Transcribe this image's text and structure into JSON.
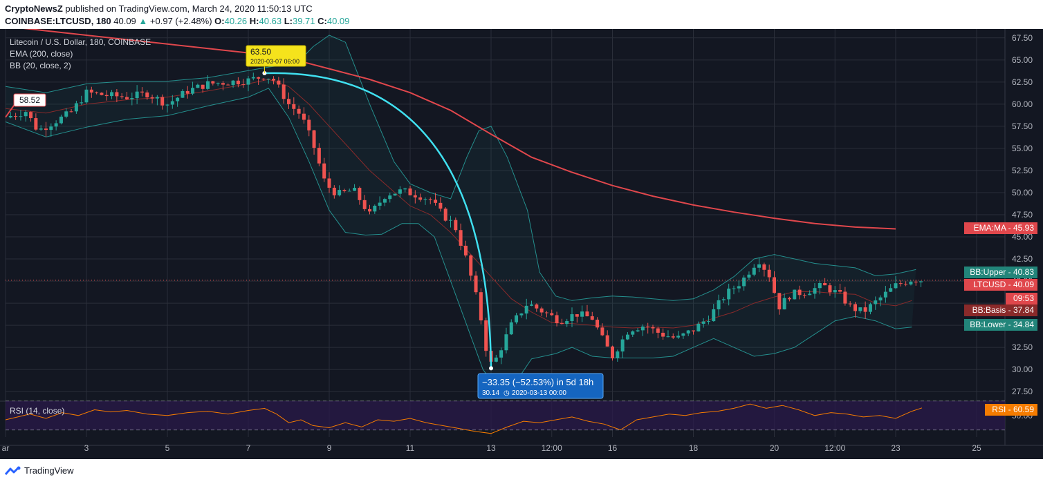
{
  "header": {
    "publisher": "CryptoNewsZ",
    "published_text": "published on TradingView.com, March 24, 2020 11:50:13 UTC",
    "symbol": "COINBASE:LTCUSD, 180",
    "last": "40.09",
    "change": "+0.97 (+2.48%)",
    "o_label": "O:",
    "o_value": "40.26",
    "h_label": "H:",
    "h_value": "40.63",
    "l_label": "L:",
    "l_value": "39.71",
    "c_label": "C:",
    "c_value": "40.09"
  },
  "legend": {
    "title": "Litecoin / U.S. Dollar, 180, COINBASE",
    "ema": "EMA (200, close)",
    "bb": "BB (20, close, 2)",
    "rsi": "RSI (14, close)"
  },
  "annotations": {
    "start_price": "58.52",
    "peak_price": "63.50",
    "peak_date": "2020-03-07 06:00",
    "drop_text": "−33.35 (−52.53%) in 5d 18h",
    "drop_price": "30.14",
    "drop_date": "2020-03-13  00:00"
  },
  "price_labels": [
    {
      "name": "EMA:MA",
      "value": "45.93",
      "color": "#e0474c"
    },
    {
      "name": "BB:Upper",
      "value": "40.83",
      "color": "#22857a"
    },
    {
      "name": "LTCUSD",
      "value": "40.09",
      "color": "#e0474c"
    },
    {
      "name": "",
      "value": "09:53",
      "color": "#e0474c"
    },
    {
      "name": "BB:Basis",
      "value": "37.84",
      "color": "#8a2a2a"
    },
    {
      "name": "BB:Lower",
      "value": "34.84",
      "color": "#22857a"
    }
  ],
  "rsi_label": {
    "name": "RSI",
    "value": "60.59",
    "color": "#f57c00"
  },
  "footer": {
    "brand": "TradingView"
  },
  "colors": {
    "up": "#26a69a",
    "down": "#ef5350",
    "ema": "#e0474c",
    "bb": "#2bb5b0",
    "basis": "#8a2a2a",
    "arc": "#40e0f0",
    "rsi": "#f57c00"
  },
  "chart_data": {
    "type": "candlestick",
    "title": "Litecoin / U.S. Dollar, 180, COINBASE",
    "y_ticks": [
      "67.50",
      "65.00",
      "62.50",
      "60.00",
      "57.50",
      "55.00",
      "52.50",
      "50.00",
      "47.50",
      "45.00",
      "42.50",
      "40.00",
      "37.50",
      "35.00",
      "32.50",
      "30.00",
      "27.50"
    ],
    "ylim": [
      26.5,
      68.5
    ],
    "rsi_ticks": [
      "50.00"
    ],
    "x_ticks": [
      {
        "label": "ar",
        "t": 0
      },
      {
        "label": "3",
        "t": 2
      },
      {
        "label": "5",
        "t": 4
      },
      {
        "label": "7",
        "t": 6
      },
      {
        "label": "9",
        "t": 8
      },
      {
        "label": "11",
        "t": 10
      },
      {
        "label": "13",
        "t": 12
      },
      {
        "label": "12:00",
        "t": 13.5
      },
      {
        "label": "16",
        "t": 15
      },
      {
        "label": "18",
        "t": 17
      },
      {
        "label": "20",
        "t": 19
      },
      {
        "label": "12:00",
        "t": 20.5
      },
      {
        "label": "23",
        "t": 22
      },
      {
        "label": "25",
        "t": 24
      }
    ],
    "price_anchors": [
      [
        0,
        58.5
      ],
      [
        0.5,
        59.2
      ],
      [
        0.8,
        57.0
      ],
      [
        1.2,
        58.0
      ],
      [
        1.6,
        59.0
      ],
      [
        2.0,
        61.3
      ],
      [
        2.5,
        61.0
      ],
      [
        3.0,
        60.8
      ],
      [
        3.5,
        61.2
      ],
      [
        4.0,
        60.0
      ],
      [
        4.5,
        61.5
      ],
      [
        5.0,
        62.3
      ],
      [
        5.5,
        62.5
      ],
      [
        6.0,
        62.7
      ],
      [
        6.4,
        63.2
      ],
      [
        6.6,
        62.9
      ],
      [
        6.8,
        61.5
      ],
      [
        7.0,
        60.0
      ],
      [
        7.3,
        58.8
      ],
      [
        7.6,
        55.5
      ],
      [
        7.9,
        51.0
      ],
      [
        8.2,
        49.8
      ],
      [
        8.6,
        50.3
      ],
      [
        9.0,
        47.5
      ],
      [
        9.4,
        49.8
      ],
      [
        9.8,
        50.2
      ],
      [
        10.2,
        49.7
      ],
      [
        10.5,
        49.2
      ],
      [
        10.8,
        47.5
      ],
      [
        11.1,
        46.3
      ],
      [
        11.4,
        42.3
      ],
      [
        11.7,
        37.0
      ],
      [
        11.95,
        30.5
      ],
      [
        12.1,
        31.0
      ],
      [
        12.5,
        35.0
      ],
      [
        12.9,
        37.5
      ],
      [
        13.3,
        36.5
      ],
      [
        13.7,
        35.5
      ],
      [
        14.1,
        36.3
      ],
      [
        14.5,
        35.8
      ],
      [
        14.8,
        33.0
      ],
      [
        15.0,
        31.5
      ],
      [
        15.4,
        34.5
      ],
      [
        15.8,
        35.0
      ],
      [
        16.2,
        34.0
      ],
      [
        16.6,
        33.5
      ],
      [
        17.0,
        34.5
      ],
      [
        17.4,
        36.0
      ],
      [
        17.8,
        38.5
      ],
      [
        18.2,
        40.0
      ],
      [
        18.6,
        42.5
      ],
      [
        18.9,
        40.5
      ],
      [
        19.1,
        37.0
      ],
      [
        19.4,
        38.5
      ],
      [
        19.8,
        38.8
      ],
      [
        20.2,
        39.5
      ],
      [
        20.6,
        38.5
      ],
      [
        20.9,
        37.0
      ],
      [
        21.2,
        36.5
      ],
      [
        21.6,
        38.0
      ],
      [
        22.0,
        39.5
      ],
      [
        22.4,
        40.2
      ],
      [
        22.65,
        40.1
      ]
    ],
    "ema_200": [
      [
        0,
        68.8
      ],
      [
        2,
        67.8
      ],
      [
        4,
        66.8
      ],
      [
        6,
        65.8
      ],
      [
        7,
        65.2
      ],
      [
        8,
        64.0
      ],
      [
        9,
        62.8
      ],
      [
        10,
        61.3
      ],
      [
        11,
        59.3
      ],
      [
        12,
        56.6
      ],
      [
        13,
        54.0
      ],
      [
        14,
        52.3
      ],
      [
        15,
        50.8
      ],
      [
        16,
        49.6
      ],
      [
        17,
        48.6
      ],
      [
        18,
        47.8
      ],
      [
        19,
        47.1
      ],
      [
        20,
        46.5
      ],
      [
        21,
        46.1
      ],
      [
        22,
        45.9
      ]
    ],
    "bb_upper": [
      [
        0,
        62.0
      ],
      [
        1,
        61.3
      ],
      [
        2,
        62.3
      ],
      [
        3,
        62.6
      ],
      [
        4,
        62.6
      ],
      [
        5,
        63.0
      ],
      [
        6,
        63.8
      ],
      [
        6.5,
        64.2
      ],
      [
        7.2,
        64.6
      ],
      [
        7.6,
        66.5
      ],
      [
        8.0,
        67.8
      ],
      [
        8.4,
        67.0
      ],
      [
        9.0,
        60.0
      ],
      [
        9.6,
        53.5
      ],
      [
        10.0,
        51.0
      ],
      [
        10.5,
        50.0
      ],
      [
        11.0,
        49.3
      ],
      [
        11.4,
        54.0
      ],
      [
        11.7,
        57.0
      ],
      [
        12.0,
        57.5
      ],
      [
        12.4,
        54.0
      ],
      [
        12.9,
        48.0
      ],
      [
        13.2,
        41.0
      ],
      [
        13.6,
        38.3
      ],
      [
        14.0,
        37.8
      ],
      [
        14.5,
        38.1
      ],
      [
        15.0,
        38.3
      ],
      [
        15.5,
        38.2
      ],
      [
        16.0,
        38.0
      ],
      [
        16.5,
        37.8
      ],
      [
        17.0,
        38.0
      ],
      [
        17.5,
        39.0
      ],
      [
        18.0,
        40.5
      ],
      [
        18.5,
        42.5
      ],
      [
        19.0,
        43.0
      ],
      [
        19.5,
        42.5
      ],
      [
        20.0,
        42.0
      ],
      [
        21.0,
        41.5
      ],
      [
        21.5,
        40.6
      ],
      [
        22.0,
        40.8
      ],
      [
        22.5,
        41.3
      ]
    ],
    "bb_lower": [
      [
        0,
        58.0
      ],
      [
        1,
        56.3
      ],
      [
        2,
        57.4
      ],
      [
        3,
        58.3
      ],
      [
        4,
        58.7
      ],
      [
        5,
        59.8
      ],
      [
        6,
        60.8
      ],
      [
        6.5,
        61.8
      ],
      [
        7.0,
        58.5
      ],
      [
        7.5,
        53.5
      ],
      [
        8.0,
        48.0
      ],
      [
        8.4,
        45.5
      ],
      [
        8.9,
        45.2
      ],
      [
        9.3,
        45.3
      ],
      [
        9.8,
        46.5
      ],
      [
        10.2,
        46.5
      ],
      [
        10.6,
        45.0
      ],
      [
        11.0,
        40.0
      ],
      [
        11.4,
        35.0
      ],
      [
        11.8,
        30.0
      ],
      [
        12.2,
        27.5
      ],
      [
        12.6,
        28.5
      ],
      [
        13.0,
        31.2
      ],
      [
        13.6,
        31.8
      ],
      [
        14.0,
        32.5
      ],
      [
        14.5,
        31.5
      ],
      [
        15.0,
        31.3
      ],
      [
        16.0,
        31.3
      ],
      [
        16.5,
        31.5
      ],
      [
        17.0,
        32.5
      ],
      [
        17.5,
        33.5
      ],
      [
        18.0,
        32.5
      ],
      [
        18.5,
        31.5
      ],
      [
        19.0,
        31.8
      ],
      [
        19.5,
        32.5
      ],
      [
        20.0,
        34.0
      ],
      [
        20.5,
        35.5
      ],
      [
        21.0,
        36.0
      ],
      [
        21.5,
        35.5
      ],
      [
        22.0,
        34.6
      ],
      [
        22.4,
        34.8
      ]
    ],
    "bb_basis": [
      [
        0,
        59.5
      ],
      [
        1,
        59.0
      ],
      [
        2,
        60.0
      ],
      [
        3,
        60.5
      ],
      [
        4,
        60.8
      ],
      [
        5,
        61.5
      ],
      [
        6,
        62.3
      ],
      [
        6.5,
        62.8
      ],
      [
        7.0,
        62.0
      ],
      [
        7.5,
        60.0
      ],
      [
        8.0,
        57.5
      ],
      [
        8.5,
        55.0
      ],
      [
        9.0,
        52.5
      ],
      [
        9.5,
        50.5
      ],
      [
        10.0,
        48.5
      ],
      [
        10.5,
        47.5
      ],
      [
        11.0,
        45.5
      ],
      [
        11.5,
        43.0
      ],
      [
        12.0,
        40.5
      ],
      [
        12.5,
        38.0
      ],
      [
        13.0,
        36.5
      ],
      [
        13.5,
        35.3
      ],
      [
        14.0,
        35.2
      ],
      [
        14.5,
        35.0
      ],
      [
        15.0,
        34.8
      ],
      [
        15.5,
        34.7
      ],
      [
        16.0,
        34.8
      ],
      [
        16.5,
        34.7
      ],
      [
        17.0,
        35.0
      ],
      [
        17.5,
        35.8
      ],
      [
        18.0,
        36.5
      ],
      [
        18.5,
        37.5
      ],
      [
        19.0,
        38.2
      ],
      [
        19.5,
        38.8
      ],
      [
        20.0,
        38.8
      ],
      [
        20.5,
        38.6
      ],
      [
        21.0,
        38.5
      ],
      [
        21.5,
        37.5
      ],
      [
        22.0,
        37.2
      ],
      [
        22.4,
        37.8
      ]
    ],
    "rsi": [
      [
        0,
        44
      ],
      [
        0.3,
        48
      ],
      [
        0.6,
        52
      ],
      [
        1,
        46
      ],
      [
        1.4,
        54
      ],
      [
        1.8,
        50
      ],
      [
        2.2,
        58
      ],
      [
        2.6,
        55
      ],
      [
        3,
        57
      ],
      [
        3.5,
        52
      ],
      [
        4,
        50
      ],
      [
        4.5,
        54
      ],
      [
        5,
        56
      ],
      [
        5.5,
        52
      ],
      [
        6,
        57
      ],
      [
        6.4,
        60
      ],
      [
        6.7,
        52
      ],
      [
        7,
        40
      ],
      [
        7.3,
        44
      ],
      [
        7.6,
        36
      ],
      [
        8,
        33
      ],
      [
        8.4,
        40
      ],
      [
        8.8,
        34
      ],
      [
        9.2,
        44
      ],
      [
        9.6,
        42
      ],
      [
        10,
        46
      ],
      [
        10.4,
        40
      ],
      [
        10.8,
        36
      ],
      [
        11.2,
        32
      ],
      [
        11.6,
        28
      ],
      [
        12,
        25
      ],
      [
        12.4,
        34
      ],
      [
        12.8,
        42
      ],
      [
        13.2,
        40
      ],
      [
        13.6,
        44
      ],
      [
        14,
        48
      ],
      [
        14.4,
        42
      ],
      [
        14.8,
        38
      ],
      [
        15.2,
        30
      ],
      [
        15.6,
        44
      ],
      [
        16,
        48
      ],
      [
        16.4,
        52
      ],
      [
        16.8,
        50
      ],
      [
        17.2,
        54
      ],
      [
        17.6,
        56
      ],
      [
        18,
        60
      ],
      [
        18.4,
        66
      ],
      [
        18.8,
        60
      ],
      [
        19.2,
        64
      ],
      [
        19.6,
        58
      ],
      [
        20,
        50
      ],
      [
        20.4,
        54
      ],
      [
        20.8,
        52
      ],
      [
        21.2,
        48
      ],
      [
        21.6,
        50
      ],
      [
        22,
        46
      ],
      [
        22.4,
        56
      ],
      [
        22.65,
        60.6
      ]
    ],
    "rsi_range": [
      20,
      70
    ],
    "grid": true
  }
}
